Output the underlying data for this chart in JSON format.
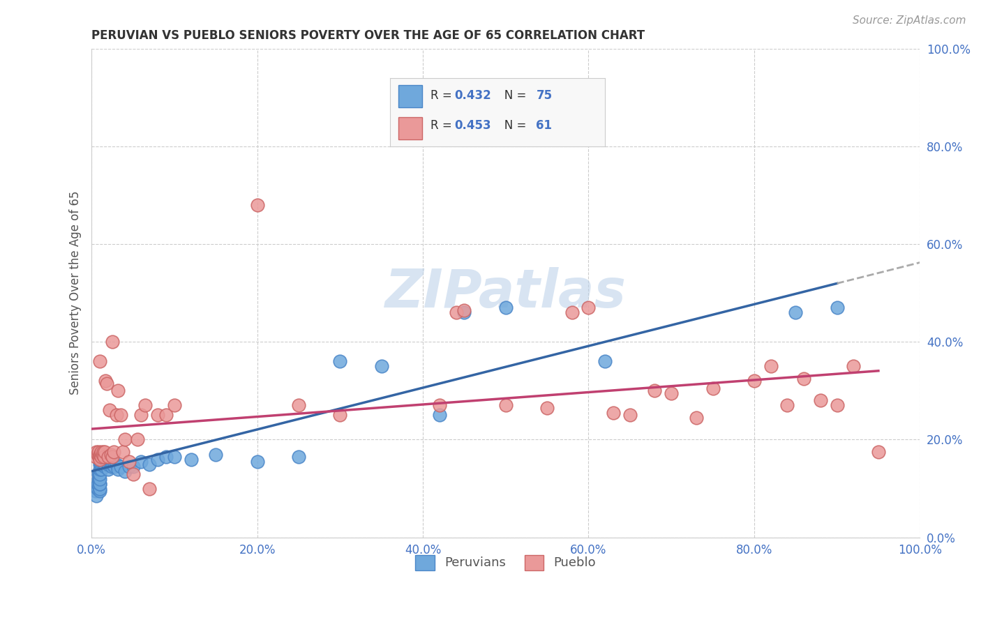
{
  "title": "PERUVIAN VS PUEBLO SENIORS POVERTY OVER THE AGE OF 65 CORRELATION CHART",
  "source": "Source: ZipAtlas.com",
  "ylabel": "Seniors Poverty Over the Age of 65",
  "xlim": [
    0,
    1.0
  ],
  "ylim": [
    0,
    1.0
  ],
  "xtick_vals": [
    0.0,
    0.2,
    0.4,
    0.6,
    0.8,
    1.0
  ],
  "ytick_vals": [
    0.0,
    0.2,
    0.4,
    0.6,
    0.8,
    1.0
  ],
  "xtick_labels": [
    "0.0%",
    "20.0%",
    "40.0%",
    "60.0%",
    "80.0%",
    "100.0%"
  ],
  "ytick_labels": [
    "0.0%",
    "20.0%",
    "40.0%",
    "60.0%",
    "80.0%",
    "100.0%"
  ],
  "peruvian_color": "#6fa8dc",
  "pueblo_color": "#ea9999",
  "peruvian_edge": "#4a86c8",
  "pueblo_edge": "#cc6666",
  "trendline_peruvian": "#3465a4",
  "trendline_pueblo": "#c04070",
  "trendline_ext_color": "#aaaaaa",
  "R_peruvian": 0.432,
  "N_peruvian": 75,
  "R_pueblo": 0.453,
  "N_pueblo": 61,
  "legend_label_peruvian": "Peruvians",
  "legend_label_pueblo": "Pueblo",
  "watermark": "ZIPatlas",
  "background_color": "#ffffff",
  "blue_text_color": "#4472c4",
  "peruvian_x": [
    0.005,
    0.006,
    0.007,
    0.007,
    0.008,
    0.008,
    0.009,
    0.009,
    0.009,
    0.01,
    0.01,
    0.01,
    0.01,
    0.01,
    0.01,
    0.01,
    0.01,
    0.01,
    0.01,
    0.01,
    0.01,
    0.01,
    0.012,
    0.012,
    0.013,
    0.013,
    0.014,
    0.014,
    0.014,
    0.014,
    0.015,
    0.015,
    0.015,
    0.015,
    0.015,
    0.016,
    0.016,
    0.016,
    0.017,
    0.017,
    0.018,
    0.018,
    0.019,
    0.02,
    0.02,
    0.021,
    0.022,
    0.023,
    0.024,
    0.025,
    0.026,
    0.028,
    0.03,
    0.032,
    0.035,
    0.04,
    0.045,
    0.05,
    0.06,
    0.07,
    0.08,
    0.09,
    0.1,
    0.12,
    0.15,
    0.2,
    0.25,
    0.3,
    0.35,
    0.42,
    0.45,
    0.5,
    0.62,
    0.85,
    0.9
  ],
  "peruvian_y": [
    0.095,
    0.085,
    0.1,
    0.11,
    0.12,
    0.13,
    0.11,
    0.12,
    0.13,
    0.095,
    0.1,
    0.11,
    0.11,
    0.12,
    0.13,
    0.14,
    0.15,
    0.155,
    0.16,
    0.165,
    0.165,
    0.17,
    0.14,
    0.15,
    0.15,
    0.16,
    0.155,
    0.16,
    0.165,
    0.17,
    0.15,
    0.155,
    0.16,
    0.165,
    0.17,
    0.145,
    0.15,
    0.16,
    0.165,
    0.17,
    0.155,
    0.16,
    0.155,
    0.14,
    0.15,
    0.155,
    0.16,
    0.155,
    0.145,
    0.15,
    0.155,
    0.145,
    0.15,
    0.14,
    0.145,
    0.135,
    0.145,
    0.145,
    0.155,
    0.15,
    0.16,
    0.165,
    0.165,
    0.16,
    0.17,
    0.155,
    0.165,
    0.36,
    0.35,
    0.25,
    0.46,
    0.47,
    0.36,
    0.46,
    0.47
  ],
  "pueblo_x": [
    0.005,
    0.006,
    0.007,
    0.008,
    0.009,
    0.01,
    0.01,
    0.01,
    0.011,
    0.012,
    0.012,
    0.013,
    0.014,
    0.015,
    0.016,
    0.017,
    0.018,
    0.02,
    0.022,
    0.023,
    0.025,
    0.025,
    0.027,
    0.03,
    0.032,
    0.035,
    0.038,
    0.04,
    0.045,
    0.05,
    0.055,
    0.06,
    0.065,
    0.07,
    0.08,
    0.09,
    0.1,
    0.2,
    0.25,
    0.3,
    0.42,
    0.44,
    0.45,
    0.5,
    0.55,
    0.58,
    0.6,
    0.63,
    0.65,
    0.68,
    0.7,
    0.73,
    0.75,
    0.8,
    0.82,
    0.84,
    0.86,
    0.88,
    0.9,
    0.92,
    0.95
  ],
  "pueblo_y": [
    0.165,
    0.175,
    0.17,
    0.175,
    0.165,
    0.16,
    0.17,
    0.36,
    0.17,
    0.165,
    0.175,
    0.17,
    0.175,
    0.165,
    0.175,
    0.32,
    0.315,
    0.165,
    0.26,
    0.17,
    0.165,
    0.4,
    0.175,
    0.25,
    0.3,
    0.25,
    0.175,
    0.2,
    0.155,
    0.13,
    0.2,
    0.25,
    0.27,
    0.1,
    0.25,
    0.25,
    0.27,
    0.68,
    0.27,
    0.25,
    0.27,
    0.46,
    0.465,
    0.27,
    0.265,
    0.46,
    0.47,
    0.255,
    0.25,
    0.3,
    0.295,
    0.245,
    0.305,
    0.32,
    0.35,
    0.27,
    0.325,
    0.28,
    0.27,
    0.35,
    0.175
  ]
}
